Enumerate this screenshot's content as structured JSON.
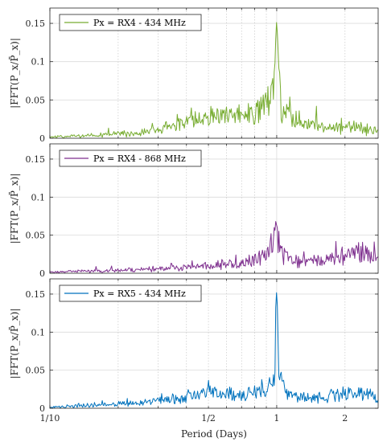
{
  "chart_data": [
    {
      "type": "line",
      "ylabel": "|FFT(P_x/P̄_x)|",
      "ylim": [
        0,
        0.17
      ],
      "yticks": [
        0,
        0.05,
        0.1,
        0.15
      ],
      "ytick_labels": [
        "0",
        "0.05",
        "0.1",
        "0.15"
      ],
      "xscale": "log",
      "xlim": [
        0.1,
        2.8
      ],
      "grid": true,
      "legend_position": "top-left",
      "series": [
        {
          "name": "Px = RX4 - 434 MHz",
          "color": "#77ac30",
          "noise_base": 0.002,
          "noise_growth": 0.013,
          "noise_amp": 0.009,
          "seed": 11,
          "x": [
            0.1,
            0.25,
            0.3,
            0.5,
            0.7,
            0.85,
            0.95,
            0.98,
            1.0,
            1.02,
            1.05,
            1.1,
            1.2,
            1.5,
            2.0,
            2.5,
            2.8
          ],
          "y": [
            0.002,
            0.008,
            0.015,
            0.033,
            0.04,
            0.045,
            0.07,
            0.09,
            0.157,
            0.095,
            0.045,
            0.04,
            0.03,
            0.02,
            0.018,
            0.015,
            0.012
          ]
        }
      ]
    },
    {
      "type": "line",
      "ylabel": "|FFT(P_x/P̄_x)|",
      "ylim": [
        0,
        0.17
      ],
      "yticks": [
        0,
        0.05,
        0.1,
        0.15
      ],
      "ytick_labels": [
        "0",
        "0.05",
        "0.1",
        "0.15"
      ],
      "xscale": "log",
      "xlim": [
        0.1,
        2.8
      ],
      "grid": true,
      "legend_position": "top-left",
      "series": [
        {
          "name": "Px = RX4 - 868 MHz",
          "color": "#7e2f8e",
          "noise_base": 0.002,
          "noise_growth": 0.011,
          "noise_amp": 0.006,
          "seed": 23,
          "x": [
            0.1,
            0.25,
            0.5,
            0.7,
            0.9,
            1.0,
            1.05,
            1.2,
            1.5,
            2.0,
            2.3,
            2.6,
            2.8
          ],
          "y": [
            0.002,
            0.006,
            0.012,
            0.016,
            0.03,
            0.064,
            0.03,
            0.02,
            0.02,
            0.028,
            0.035,
            0.03,
            0.02
          ]
        }
      ]
    },
    {
      "type": "line",
      "ylabel": "|FFT(P_x/P̄_x)|",
      "ylim": [
        0,
        0.17
      ],
      "yticks": [
        0,
        0.05,
        0.1,
        0.15
      ],
      "ytick_labels": [
        "0",
        "0.05",
        "0.1",
        "0.15"
      ],
      "xscale": "log",
      "xlim": [
        0.1,
        2.8
      ],
      "grid": true,
      "legend_position": "top-left",
      "xlabel": "Period (Days)",
      "xticks": [
        0.1,
        0.5,
        1,
        2
      ],
      "xtick_labels": [
        "1/10",
        "1/2",
        "1",
        "2"
      ],
      "series": [
        {
          "name": "Px = RX5 - 434 MHz",
          "color": "#0072bd",
          "noise_base": 0.002,
          "noise_growth": 0.011,
          "noise_amp": 0.008,
          "seed": 37,
          "x": [
            0.1,
            0.25,
            0.5,
            0.7,
            0.9,
            0.97,
            1.0,
            1.03,
            1.1,
            1.3,
            1.8,
            2.2,
            2.6,
            2.8
          ],
          "y": [
            0.002,
            0.008,
            0.025,
            0.02,
            0.03,
            0.05,
            0.158,
            0.05,
            0.02,
            0.018,
            0.02,
            0.025,
            0.022,
            0.01
          ]
        }
      ]
    }
  ]
}
